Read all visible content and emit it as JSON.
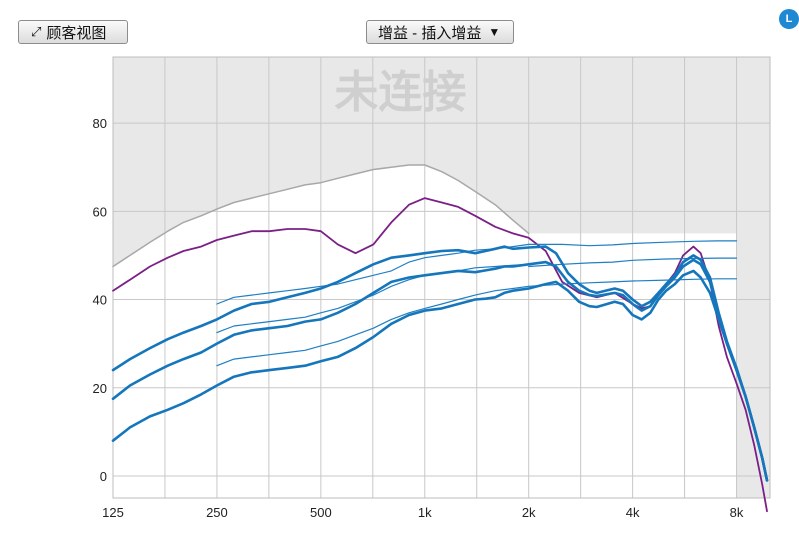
{
  "toolbar": {
    "customer_view_label": "顾客视图",
    "gain_select_label": "增益 - 插入增益",
    "side_badge": "L"
  },
  "chart_data": {
    "type": "line",
    "title": "",
    "status_text": "未连接",
    "xlabel": "",
    "ylabel": "",
    "x_scale": "log",
    "x_ticks": [
      125,
      250,
      500,
      1000,
      2000,
      4000,
      8000
    ],
    "x_tick_labels": [
      "125",
      "250",
      "500",
      "1k",
      "2k",
      "4k",
      "8k"
    ],
    "y_ticks": [
      0,
      20,
      40,
      60,
      80
    ],
    "xlim": [
      125,
      10000
    ],
    "ylim": [
      -5,
      95
    ],
    "grid": true,
    "colors": {
      "plot_background": "#e8e8e8",
      "grid": "#c8c8c8",
      "target_white": "#ffffff",
      "uncomfortable": "#a8a8a8",
      "output_limit": "#7b1f86",
      "gain_bold": "#1576bc",
      "gain_thin": "#1f7fc4"
    },
    "series": [
      {
        "x": [
          125,
          140,
          160,
          180,
          200,
          225,
          250,
          280,
          315,
          355,
          400,
          450,
          500,
          560,
          630,
          710,
          800,
          900,
          1000,
          1120,
          1250,
          1400,
          1600,
          1800,
          2000
        ],
        "y": [
          47.5,
          50,
          53,
          55.5,
          57.5,
          59,
          60.5,
          62,
          63,
          64,
          65,
          66,
          66.5,
          67.5,
          68.5,
          69.5,
          70,
          70.5,
          70.5,
          69,
          67,
          64.5,
          61.5,
          58,
          55
        ],
        "color": "#a8a8a8",
        "width": 1.5
      },
      {
        "x": [
          125,
          140,
          160,
          180,
          200,
          225,
          250,
          280,
          315,
          355,
          400,
          450,
          500,
          560,
          630,
          710,
          800,
          900,
          1000,
          1120,
          1250,
          1400,
          1600,
          1800,
          2000,
          2240,
          2500,
          2800,
          3150,
          3550,
          4000,
          4250,
          4500,
          4750,
          5000,
          5300,
          5600,
          6000,
          6300,
          6700,
          7100,
          7500,
          8000,
          8500,
          9000,
          9500,
          9800
        ],
        "y": [
          42,
          44.5,
          47.5,
          49.5,
          51,
          52,
          53.5,
          54.5,
          55.5,
          55.5,
          56,
          56,
          55.5,
          52.5,
          50.5,
          52.5,
          57.5,
          61.5,
          63,
          62,
          61,
          59,
          56.5,
          55,
          54,
          51,
          44,
          41.5,
          40.5,
          41.5,
          39,
          38,
          38.5,
          41,
          43.5,
          46,
          50,
          52,
          50.5,
          44,
          34,
          27,
          21,
          15,
          7,
          -2,
          -8
        ],
        "color": "#7b1f86",
        "width": 1.8
      },
      {
        "x": [
          2000,
          2500,
          3000,
          3500,
          4000,
          5000,
          6000,
          7000,
          8000
        ],
        "y": [
          52.5,
          52.5,
          52.2,
          52.4,
          52.7,
          53,
          53.2,
          53.3,
          53.3
        ],
        "color": "#1f7fc4",
        "width": 1.2
      },
      {
        "x": [
          2000,
          2500,
          3000,
          3500,
          4000,
          5000,
          6000,
          7000,
          8000
        ],
        "y": [
          47.5,
          48,
          48.3,
          48.5,
          48.9,
          49.2,
          49.3,
          49.4,
          49.4
        ],
        "color": "#1f7fc4",
        "width": 1.2
      },
      {
        "x": [
          2000,
          2500,
          3000,
          3500,
          4000,
          5000,
          6000,
          7000,
          8000
        ],
        "y": [
          43,
          43.5,
          43.8,
          44,
          44.2,
          44.4,
          44.6,
          44.7,
          44.7
        ],
        "color": "#1f7fc4",
        "width": 1.2
      },
      {
        "x": [
          250,
          280,
          315,
          355,
          400,
          450,
          500,
          560,
          630,
          710,
          800,
          900,
          1000,
          1120,
          1250,
          1400,
          1600,
          1800,
          2000
        ],
        "y": [
          39,
          40.5,
          41,
          41.5,
          42,
          42.5,
          43,
          43.5,
          44.5,
          45.5,
          46.5,
          48.5,
          49.5,
          50,
          50.5,
          51.2,
          51.5,
          52,
          52.5
        ],
        "color": "#1f7fc4",
        "width": 1.2
      },
      {
        "x": [
          250,
          280,
          315,
          355,
          400,
          450,
          500,
          560,
          630,
          710,
          800,
          900,
          1000,
          1120,
          1250,
          1400,
          1600,
          1800,
          2000
        ],
        "y": [
          32.5,
          34,
          34.5,
          35,
          35.5,
          36,
          37,
          38,
          39.5,
          41,
          43,
          44.5,
          45.5,
          46,
          46.5,
          47.2,
          47.5,
          47.8,
          48
        ],
        "color": "#1f7fc4",
        "width": 1.2
      },
      {
        "x": [
          250,
          280,
          315,
          355,
          400,
          450,
          500,
          560,
          630,
          710,
          800,
          900,
          1000,
          1120,
          1250,
          1400,
          1600,
          1800,
          2000
        ],
        "y": [
          25,
          26.5,
          27,
          27.5,
          28,
          28.5,
          29.5,
          30.5,
          32,
          33.5,
          35.5,
          37,
          38,
          39,
          40,
          41,
          42,
          42.5,
          43
        ],
        "color": "#1f7fc4",
        "width": 1.2
      },
      {
        "x": [
          125,
          140,
          160,
          180,
          200,
          225,
          250,
          280,
          315,
          355,
          400,
          450,
          500,
          560,
          630,
          710,
          800,
          900,
          1000,
          1120,
          1250,
          1400,
          1500,
          1600,
          1700,
          1800,
          2000,
          2240,
          2400,
          2600,
          2800,
          3000,
          3150,
          3550,
          3750,
          4000,
          4250,
          4500,
          4750,
          5000,
          5300,
          5600,
          6000,
          6300,
          6700,
          7100,
          7500,
          8000,
          8500,
          9000,
          9500,
          9800
        ],
        "y": [
          24,
          26.5,
          29,
          31,
          32.5,
          34,
          35.5,
          37.5,
          39,
          39.5,
          40.5,
          41.5,
          42.5,
          44,
          46,
          48,
          49.5,
          50,
          50.5,
          51,
          51.2,
          50.5,
          51,
          51.5,
          52,
          51.5,
          51.8,
          52,
          50.5,
          46,
          43.5,
          42,
          41.5,
          42.5,
          42,
          40,
          38.5,
          39.5,
          41.5,
          43.5,
          45.5,
          48.5,
          50,
          49,
          45,
          37,
          30.5,
          24.5,
          18,
          11,
          4,
          -1
        ],
        "color": "#1576bc",
        "width": 2.6
      },
      {
        "x": [
          125,
          140,
          160,
          180,
          200,
          225,
          250,
          280,
          315,
          355,
          400,
          450,
          500,
          560,
          630,
          710,
          800,
          900,
          1000,
          1120,
          1250,
          1400,
          1500,
          1600,
          1700,
          1800,
          2000,
          2240,
          2400,
          2600,
          2800,
          3000,
          3150,
          3550,
          3750,
          4000,
          4250,
          4500,
          4750,
          5000,
          5300,
          5600,
          6000,
          6300,
          6700,
          7100,
          7500,
          8000,
          8500,
          9000,
          9500,
          9800
        ],
        "y": [
          17.5,
          20.5,
          23,
          25,
          26.5,
          28,
          30,
          32,
          33,
          33.5,
          34,
          35,
          35.5,
          37,
          39,
          41.5,
          44,
          45,
          45.5,
          46,
          46.5,
          46.2,
          46.6,
          47,
          47.5,
          47.5,
          48,
          48.5,
          47.5,
          44,
          42,
          41,
          40.8,
          41.5,
          41,
          39,
          37.5,
          38.5,
          41,
          43,
          45,
          47.5,
          49,
          48,
          44,
          36.5,
          30,
          24,
          18,
          11,
          4,
          -1
        ],
        "color": "#1576bc",
        "width": 2.6
      },
      {
        "x": [
          125,
          140,
          160,
          180,
          200,
          225,
          250,
          280,
          315,
          355,
          400,
          450,
          500,
          560,
          630,
          710,
          800,
          900,
          1000,
          1120,
          1250,
          1400,
          1500,
          1600,
          1700,
          1800,
          2000,
          2240,
          2400,
          2600,
          2800,
          3000,
          3150,
          3550,
          3750,
          4000,
          4250,
          4500,
          4750,
          5000,
          5300,
          5600,
          6000,
          6300,
          6700,
          7100,
          7500,
          8000,
          8500,
          9000,
          9500,
          9800
        ],
        "y": [
          8,
          11,
          13.5,
          15,
          16.5,
          18.5,
          20.5,
          22.5,
          23.5,
          24,
          24.5,
          25,
          26,
          27,
          29,
          31.5,
          34.5,
          36.5,
          37.5,
          38,
          39,
          40,
          40.2,
          40.5,
          41.5,
          42,
          42.5,
          43.5,
          44,
          42,
          39.5,
          38.5,
          38.3,
          39.5,
          39,
          36.5,
          35.5,
          37,
          40,
          42,
          43.5,
          45.5,
          46.5,
          45,
          41.5,
          35.5,
          30,
          24,
          18,
          11,
          4,
          -1
        ],
        "color": "#1576bc",
        "width": 2.6
      }
    ]
  }
}
